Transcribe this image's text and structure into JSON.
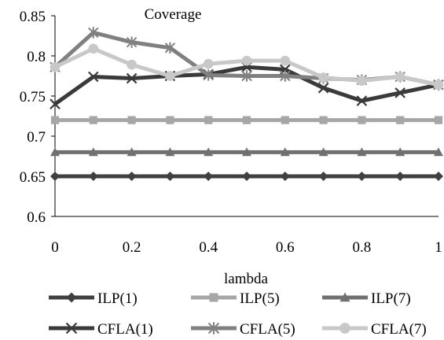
{
  "chart_data": {
    "type": "line",
    "title": "Coverage",
    "xlabel": "lambda",
    "ylabel": "",
    "x": [
      0,
      0.1,
      0.2,
      0.3,
      0.4,
      0.5,
      0.6,
      0.7,
      0.8,
      0.9,
      1.0
    ],
    "xlim": [
      0,
      1
    ],
    "ylim": [
      0.6,
      0.85
    ],
    "x_ticks": [
      "0",
      "0.2",
      "0.4",
      "0.6",
      "0.8",
      "1"
    ],
    "x_tick_values": [
      0,
      0.2,
      0.4,
      0.6,
      0.8,
      1.0
    ],
    "y_ticks": [
      "0.6",
      "0.65",
      "0.7",
      "0.75",
      "0.8",
      "0.85"
    ],
    "y_tick_values": [
      0.6,
      0.65,
      0.7,
      0.75,
      0.8,
      0.85
    ],
    "grid": false,
    "legend_position": "bottom",
    "series": [
      {
        "name": "ILP(1)",
        "color": "#404040",
        "marker": "diamond",
        "values": [
          0.65,
          0.65,
          0.65,
          0.65,
          0.65,
          0.65,
          0.65,
          0.65,
          0.65,
          0.65,
          0.65
        ]
      },
      {
        "name": "ILP(5)",
        "color": "#a6a6a6",
        "marker": "square",
        "values": [
          0.72,
          0.72,
          0.72,
          0.72,
          0.72,
          0.72,
          0.72,
          0.72,
          0.72,
          0.72,
          0.72
        ]
      },
      {
        "name": "ILP(7)",
        "color": "#707070",
        "marker": "triangle",
        "values": [
          0.68,
          0.68,
          0.68,
          0.68,
          0.68,
          0.68,
          0.68,
          0.68,
          0.68,
          0.68,
          0.68
        ]
      },
      {
        "name": "CFLA(1)",
        "color": "#3a3a3a",
        "marker": "x",
        "values": [
          0.74,
          0.774,
          0.772,
          0.775,
          0.777,
          0.786,
          0.783,
          0.76,
          0.744,
          0.754,
          0.764
        ]
      },
      {
        "name": "CFLA(5)",
        "color": "#808080",
        "marker": "star",
        "values": [
          0.786,
          0.829,
          0.817,
          0.81,
          0.776,
          0.775,
          0.775,
          0.772,
          0.77,
          0.774,
          0.764
        ]
      },
      {
        "name": "CFLA(7)",
        "color": "#c8c8c8",
        "marker": "circle",
        "values": [
          0.786,
          0.809,
          0.789,
          0.775,
          0.79,
          0.794,
          0.794,
          0.773,
          0.769,
          0.774,
          0.764
        ]
      }
    ]
  }
}
